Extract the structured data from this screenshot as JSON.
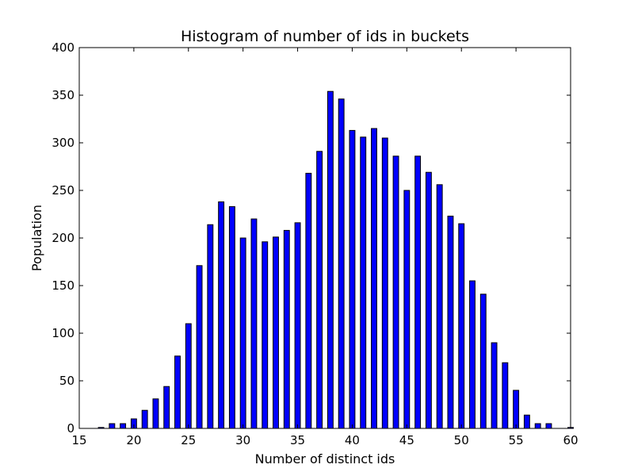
{
  "chart_data": {
    "type": "bar",
    "title": "Histogram of number of ids in buckets",
    "xlabel": "Number of distinct ids",
    "ylabel": "Population",
    "xlim": [
      15,
      60
    ],
    "ylim": [
      0,
      400
    ],
    "xticks": [
      15,
      20,
      25,
      30,
      35,
      40,
      45,
      50,
      55,
      60
    ],
    "yticks": [
      0,
      50,
      100,
      150,
      200,
      250,
      300,
      350,
      400
    ],
    "bar_width": 0.5,
    "bar_color": "#0000ff",
    "edge_color": "#000000",
    "grid": false,
    "x": [
      17,
      18,
      19,
      20,
      21,
      22,
      23,
      24,
      25,
      26,
      27,
      28,
      29,
      30,
      31,
      32,
      33,
      34,
      35,
      36,
      37,
      38,
      39,
      40,
      41,
      42,
      43,
      44,
      45,
      46,
      47,
      48,
      49,
      50,
      51,
      52,
      53,
      54,
      55,
      56,
      57,
      58,
      59,
      60
    ],
    "values": [
      1,
      5,
      5,
      10,
      19,
      31,
      44,
      76,
      110,
      171,
      214,
      238,
      233,
      200,
      220,
      196,
      201,
      208,
      216,
      268,
      291,
      354,
      346,
      313,
      306,
      315,
      305,
      286,
      250,
      286,
      269,
      256,
      223,
      215,
      155,
      141,
      90,
      69,
      40,
      14,
      5,
      5,
      0,
      1
    ]
  }
}
